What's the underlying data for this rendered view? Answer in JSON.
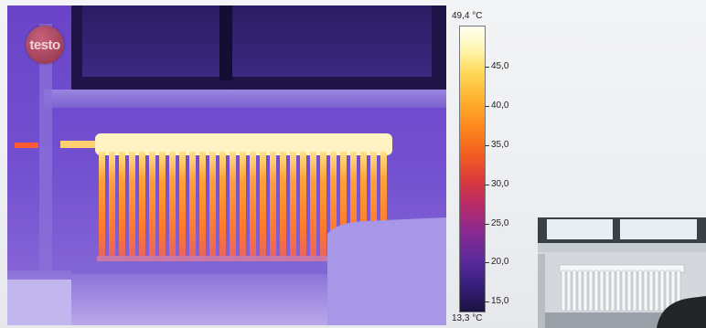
{
  "logo": {
    "text": "testo",
    "color": "#9e3f58"
  },
  "scale": {
    "max_label": "49,4 °C",
    "min_label": "13,3 °C",
    "min_value": 13.3,
    "max_value": 49.4,
    "ticks": [
      "45,0",
      "40,0",
      "35,0",
      "30,0",
      "25,0",
      "20,0",
      "15,0"
    ],
    "tick_values": [
      45.0,
      40.0,
      35.0,
      30.0,
      25.0,
      20.0,
      15.0
    ],
    "palette": "iron (white-yellow-orange-magenta-purple-black)"
  },
  "images": {
    "thermal": "infrared-image-radiator-under-window",
    "real": "visual-photo-radiator-under-window"
  }
}
